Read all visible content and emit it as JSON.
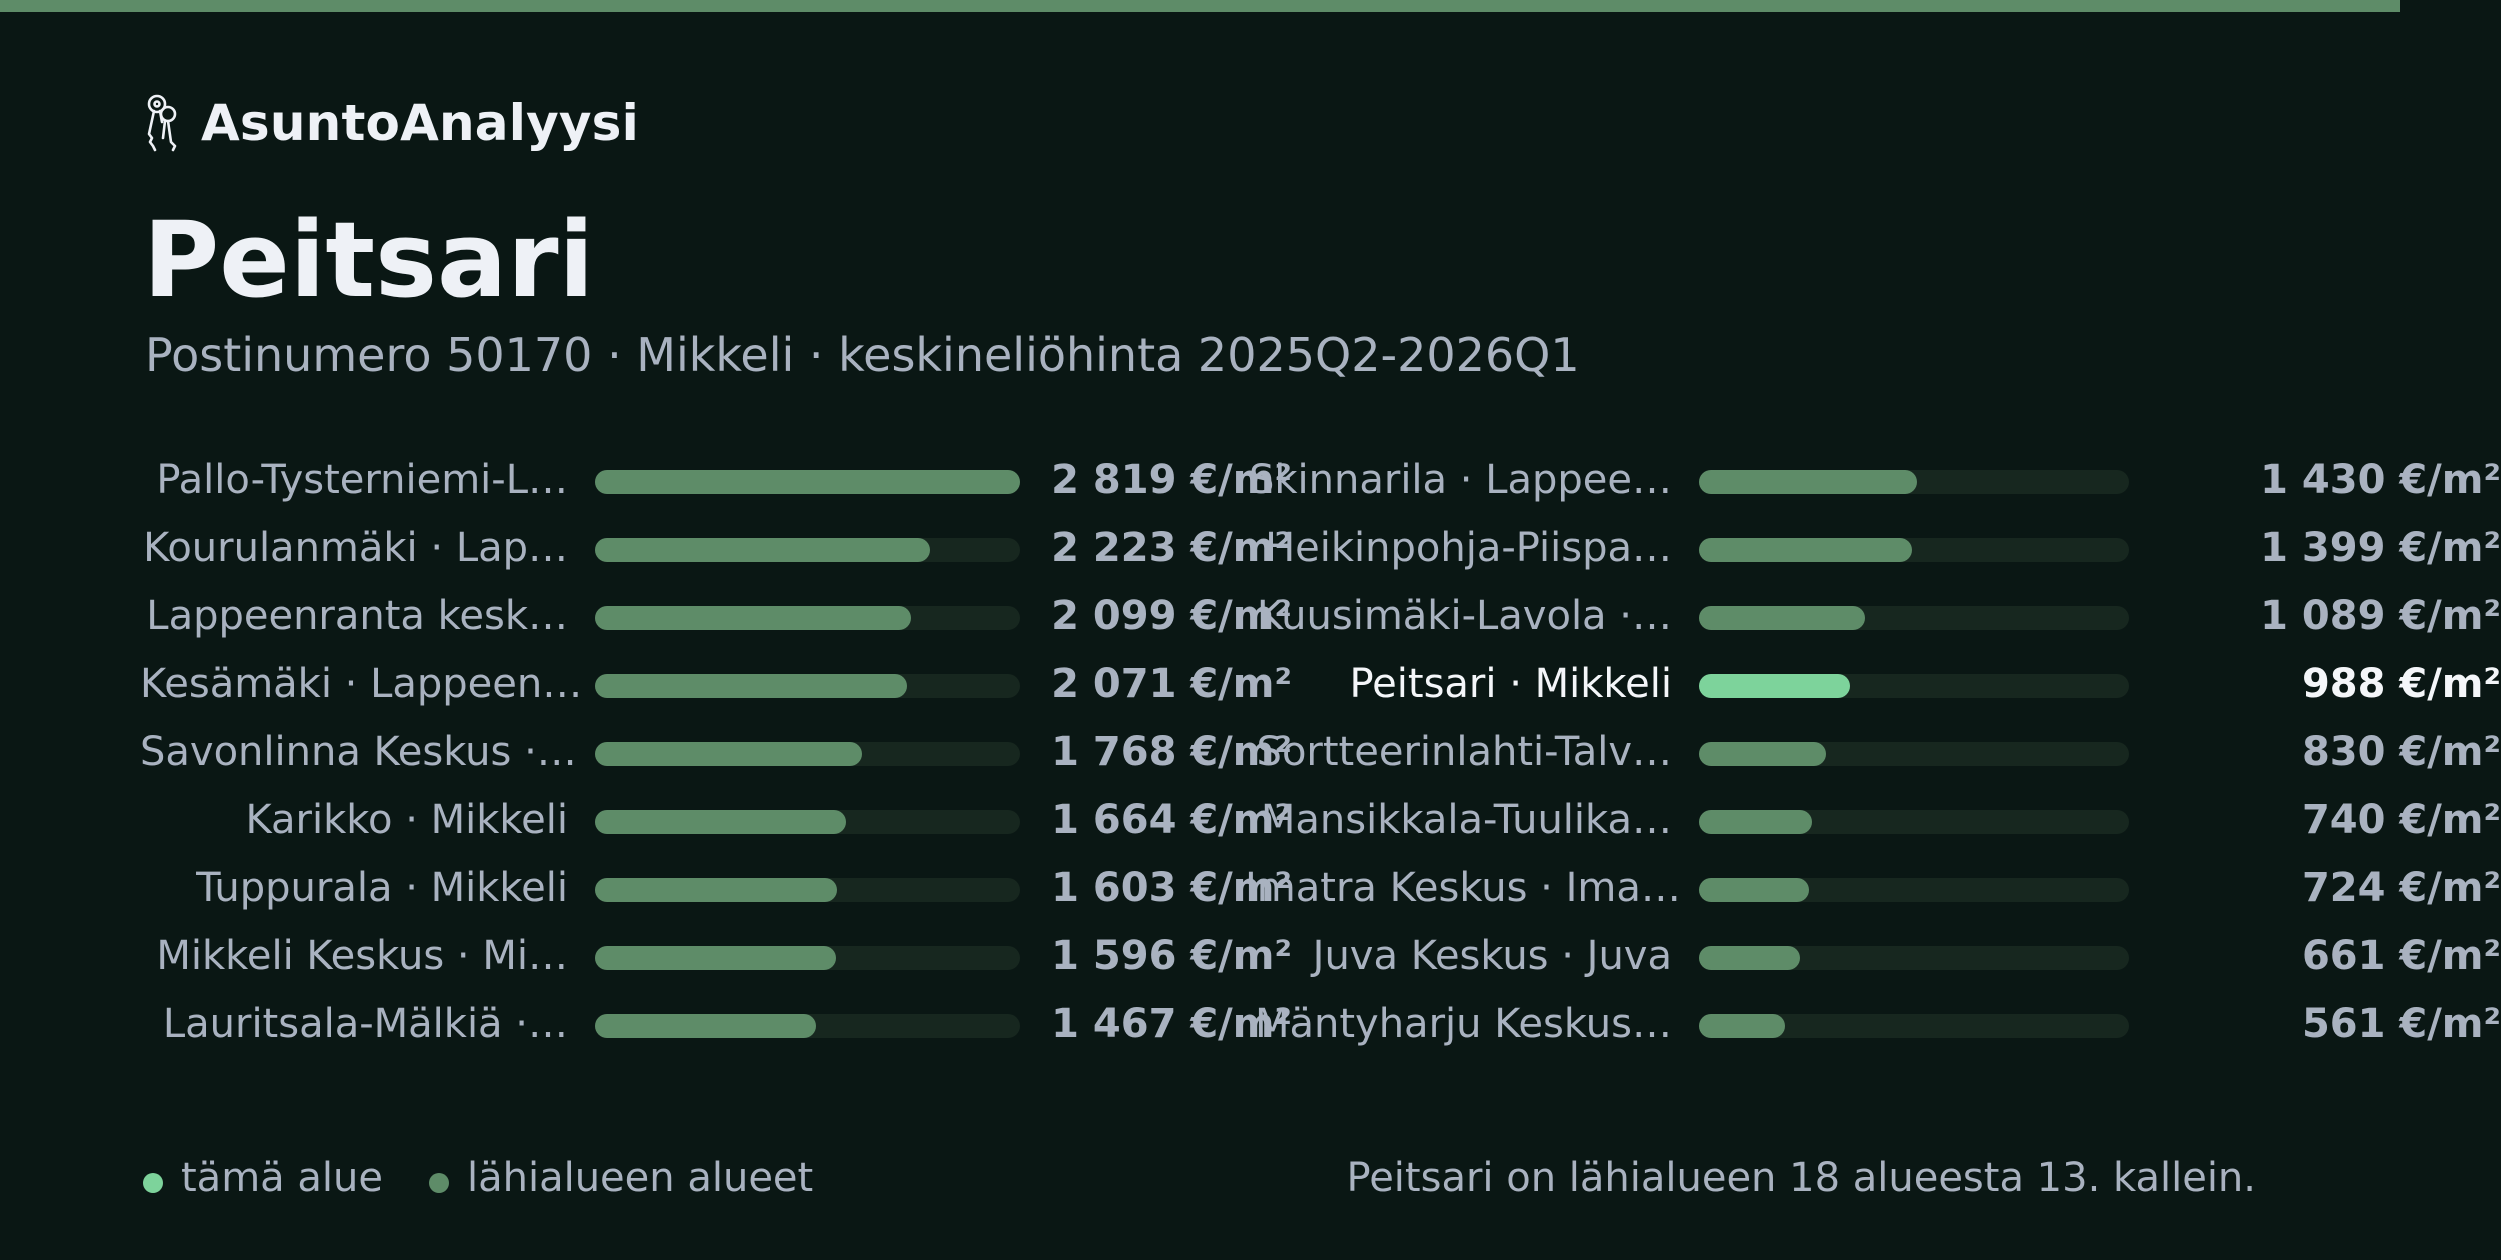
{
  "brand": {
    "name": "AsuntoAnalyysi",
    "icon": "keys-icon"
  },
  "header": {
    "title": "Peitsari",
    "subtitle": "Postinumero 50170 · Mikkeli · keskineliöhinta 2025Q2-2026Q1"
  },
  "colors": {
    "accent": "#7dd39b",
    "bar": "#5e8c68",
    "track": "#17271f",
    "background": "#0a1714",
    "topbar": "#5e8c68"
  },
  "chart_data": {
    "type": "bar",
    "unit": "€/m²",
    "max_value": 2819,
    "left": [
      {
        "label": "Pallo-Tysterniemi-L…",
        "value": 2819,
        "value_label": "2 819 €/m²"
      },
      {
        "label": "Kourulanmäki · Lap…",
        "value": 2223,
        "value_label": "2 223 €/m²"
      },
      {
        "label": "Lappeenranta kesk…",
        "value": 2099,
        "value_label": "2 099 €/m²"
      },
      {
        "label": "Kesämäki · Lappeen…",
        "value": 2071,
        "value_label": "2 071 €/m²"
      },
      {
        "label": "Savonlinna Keskus ·…",
        "value": 1768,
        "value_label": "1 768 €/m²"
      },
      {
        "label": "Karikko · Mikkeli",
        "value": 1664,
        "value_label": "1 664 €/m²"
      },
      {
        "label": "Tuppurala · Mikkeli",
        "value": 1603,
        "value_label": "1 603 €/m²"
      },
      {
        "label": "Mikkeli Keskus · Mi…",
        "value": 1596,
        "value_label": "1 596 €/m²"
      },
      {
        "label": "Lauritsala-Mälkiä ·…",
        "value": 1467,
        "value_label": "1 467 €/m²"
      }
    ],
    "right": [
      {
        "label": "Skinnarila · Lappee…",
        "value": 1430,
        "value_label": "1 430 €/m²"
      },
      {
        "label": "Heikinpohja-Piispa…",
        "value": 1399,
        "value_label": "1 399 €/m²"
      },
      {
        "label": "Kuusimäki-Lavola ·…",
        "value": 1089,
        "value_label": "1 089 €/m²"
      },
      {
        "label": "Peitsari · Mikkeli",
        "value": 988,
        "value_label": "988 €/m²",
        "highlight": true
      },
      {
        "label": "Sortteerinlahti-Talv…",
        "value": 830,
        "value_label": "830 €/m²"
      },
      {
        "label": "Mansikkala-Tuulika…",
        "value": 740,
        "value_label": "740 €/m²"
      },
      {
        "label": "Imatra Keskus · Ima…",
        "value": 724,
        "value_label": "724 €/m²"
      },
      {
        "label": "Juva Keskus · Juva",
        "value": 661,
        "value_label": "661 €/m²"
      },
      {
        "label": "Mäntyharju Keskus…",
        "value": 561,
        "value_label": "561 €/m²"
      }
    ]
  },
  "legend": {
    "this_area": "tämä alue",
    "nearby_areas": "lähialueen alueet"
  },
  "rank_text": "Peitsari on lähialueen 18 alueesta 13. kallein."
}
